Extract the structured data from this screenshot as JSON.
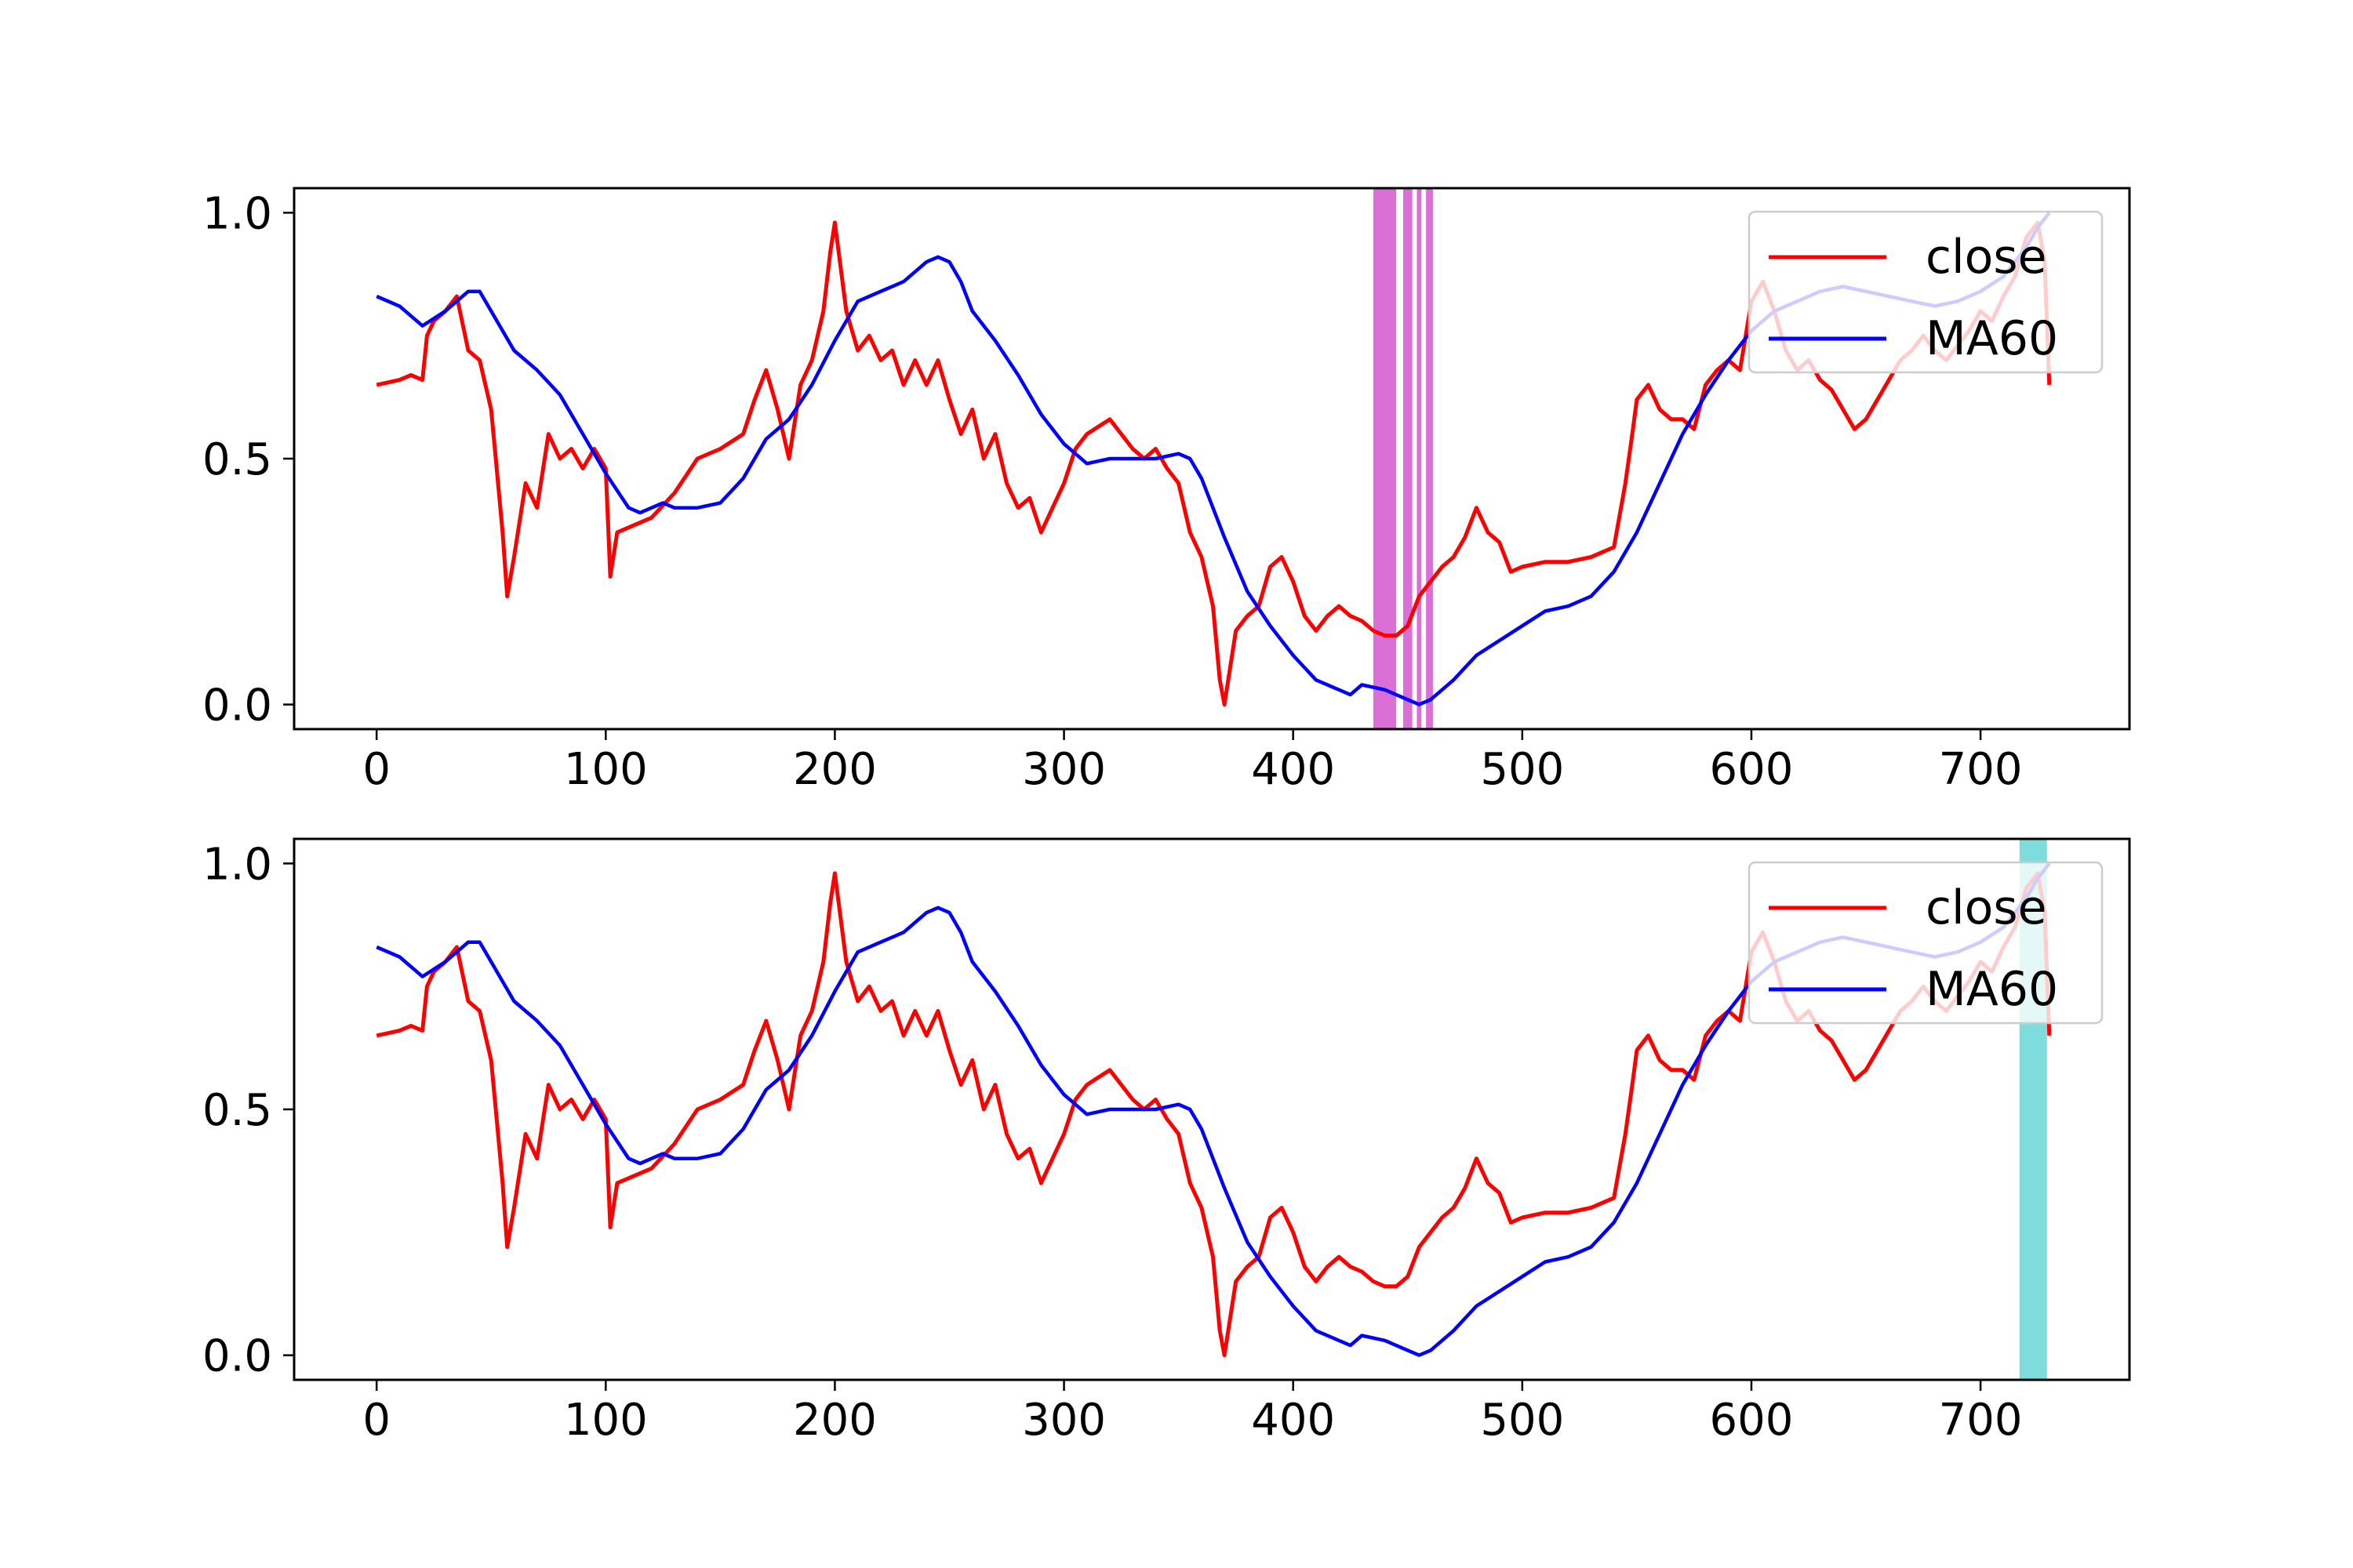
{
  "chart_data": [
    {
      "type": "line",
      "title": "",
      "xlabel": "",
      "ylabel": "",
      "xlim": [
        -36,
        765
      ],
      "ylim": [
        -0.05,
        1.05
      ],
      "xticks": [
        "0",
        "100",
        "200",
        "300",
        "400",
        "500",
        "600",
        "700"
      ],
      "yticks": [
        "0.0",
        "0.5",
        "1.0"
      ],
      "grid": false,
      "legend_placement": "upper right",
      "series": [
        {
          "name": "close",
          "color": "#ff0000",
          "x": [
            0,
            10,
            15,
            20,
            22,
            25,
            30,
            35,
            40,
            45,
            50,
            52,
            55,
            57,
            60,
            65,
            70,
            75,
            80,
            85,
            90,
            95,
            100,
            102,
            105,
            110,
            120,
            130,
            140,
            150,
            160,
            165,
            170,
            175,
            180,
            185,
            190,
            195,
            198,
            200,
            205,
            210,
            215,
            220,
            225,
            230,
            235,
            240,
            245,
            250,
            255,
            260,
            265,
            270,
            275,
            280,
            285,
            290,
            295,
            300,
            305,
            310,
            320,
            325,
            330,
            335,
            340,
            345,
            350,
            355,
            360,
            365,
            368,
            370,
            375,
            380,
            385,
            390,
            395,
            400,
            405,
            410,
            415,
            420,
            425,
            430,
            435,
            440,
            445,
            450,
            455,
            460,
            465,
            470,
            475,
            480,
            485,
            490,
            495,
            500,
            510,
            520,
            530,
            540,
            545,
            548,
            550,
            555,
            560,
            565,
            570,
            575,
            580,
            585,
            590,
            595,
            600,
            605,
            610,
            615,
            620,
            625,
            630,
            635,
            640,
            645,
            650,
            655,
            660,
            665,
            670,
            675,
            680,
            685,
            690,
            695,
            700,
            705,
            710,
            715,
            720,
            725,
            728,
            730
          ],
          "y": [
            0.65,
            0.66,
            0.67,
            0.66,
            0.75,
            0.78,
            0.8,
            0.83,
            0.72,
            0.7,
            0.6,
            0.5,
            0.35,
            0.22,
            0.3,
            0.45,
            0.4,
            0.55,
            0.5,
            0.52,
            0.48,
            0.52,
            0.48,
            0.26,
            0.35,
            0.36,
            0.38,
            0.43,
            0.5,
            0.52,
            0.55,
            0.62,
            0.68,
            0.6,
            0.5,
            0.65,
            0.7,
            0.8,
            0.92,
            0.98,
            0.8,
            0.72,
            0.75,
            0.7,
            0.72,
            0.65,
            0.7,
            0.65,
            0.7,
            0.62,
            0.55,
            0.6,
            0.5,
            0.55,
            0.45,
            0.4,
            0.42,
            0.35,
            0.4,
            0.45,
            0.52,
            0.55,
            0.58,
            0.55,
            0.52,
            0.5,
            0.52,
            0.48,
            0.45,
            0.35,
            0.3,
            0.2,
            0.05,
            0.0,
            0.15,
            0.18,
            0.2,
            0.28,
            0.3,
            0.25,
            0.18,
            0.15,
            0.18,
            0.2,
            0.18,
            0.17,
            0.15,
            0.14,
            0.14,
            0.16,
            0.22,
            0.25,
            0.28,
            0.3,
            0.34,
            0.4,
            0.35,
            0.33,
            0.27,
            0.28,
            0.29,
            0.29,
            0.3,
            0.32,
            0.45,
            0.55,
            0.62,
            0.65,
            0.6,
            0.58,
            0.58,
            0.56,
            0.65,
            0.68,
            0.7,
            0.68,
            0.82,
            0.86,
            0.8,
            0.72,
            0.68,
            0.7,
            0.66,
            0.64,
            0.6,
            0.56,
            0.58,
            0.62,
            0.66,
            0.7,
            0.72,
            0.75,
            0.72,
            0.7,
            0.73,
            0.76,
            0.8,
            0.78,
            0.83,
            0.87,
            0.95,
            0.98,
            0.9,
            0.65
          ]
        },
        {
          "name": "MA60",
          "color": "#0000ff",
          "x": [
            0,
            10,
            20,
            30,
            40,
            45,
            50,
            60,
            70,
            80,
            90,
            100,
            110,
            115,
            120,
            125,
            130,
            135,
            140,
            150,
            160,
            170,
            180,
            190,
            200,
            210,
            220,
            230,
            240,
            245,
            250,
            255,
            260,
            270,
            280,
            290,
            300,
            310,
            320,
            330,
            340,
            350,
            355,
            360,
            370,
            380,
            390,
            400,
            410,
            420,
            425,
            430,
            440,
            450,
            455,
            460,
            470,
            480,
            490,
            500,
            510,
            520,
            530,
            540,
            550,
            560,
            570,
            580,
            590,
            600,
            610,
            620,
            630,
            640,
            650,
            660,
            670,
            680,
            690,
            700,
            710,
            720,
            725,
            730
          ],
          "y": [
            0.83,
            0.81,
            0.77,
            0.8,
            0.84,
            0.84,
            0.8,
            0.72,
            0.68,
            0.63,
            0.55,
            0.47,
            0.4,
            0.39,
            0.4,
            0.41,
            0.4,
            0.4,
            0.4,
            0.41,
            0.46,
            0.54,
            0.58,
            0.65,
            0.74,
            0.82,
            0.84,
            0.86,
            0.9,
            0.91,
            0.9,
            0.86,
            0.8,
            0.74,
            0.67,
            0.59,
            0.53,
            0.49,
            0.5,
            0.5,
            0.5,
            0.51,
            0.5,
            0.46,
            0.34,
            0.23,
            0.16,
            0.1,
            0.05,
            0.03,
            0.02,
            0.04,
            0.03,
            0.01,
            0.0,
            0.01,
            0.05,
            0.1,
            0.13,
            0.16,
            0.19,
            0.2,
            0.22,
            0.27,
            0.35,
            0.45,
            0.55,
            0.63,
            0.7,
            0.76,
            0.8,
            0.82,
            0.84,
            0.85,
            0.84,
            0.83,
            0.82,
            0.81,
            0.82,
            0.84,
            0.87,
            0.93,
            0.97,
            1.0
          ]
        }
      ],
      "highlights": [
        {
          "from": 435,
          "to": 445,
          "color": "#da70d6"
        },
        {
          "from": 448,
          "to": 452,
          "color": "#da70d6"
        },
        {
          "from": 454,
          "to": 456,
          "color": "#da70d6"
        },
        {
          "from": 458,
          "to": 461,
          "color": "#da70d6"
        }
      ]
    },
    {
      "type": "line",
      "title": "",
      "xlabel": "",
      "ylabel": "",
      "xlim": [
        -36,
        765
      ],
      "ylim": [
        -0.05,
        1.05
      ],
      "xticks": [
        "0",
        "100",
        "200",
        "300",
        "400",
        "500",
        "600",
        "700"
      ],
      "yticks": [
        "0.0",
        "0.5",
        "1.0"
      ],
      "grid": false,
      "legend_placement": "upper right",
      "series": [
        {
          "name": "close",
          "color": "#ff0000",
          "x": [
            0,
            10,
            15,
            20,
            22,
            25,
            30,
            35,
            40,
            45,
            50,
            52,
            55,
            57,
            60,
            65,
            70,
            75,
            80,
            85,
            90,
            95,
            100,
            102,
            105,
            110,
            120,
            130,
            140,
            150,
            160,
            165,
            170,
            175,
            180,
            185,
            190,
            195,
            198,
            200,
            205,
            210,
            215,
            220,
            225,
            230,
            235,
            240,
            245,
            250,
            255,
            260,
            265,
            270,
            275,
            280,
            285,
            290,
            295,
            300,
            305,
            310,
            320,
            325,
            330,
            335,
            340,
            345,
            350,
            355,
            360,
            365,
            368,
            370,
            375,
            380,
            385,
            390,
            395,
            400,
            405,
            410,
            415,
            420,
            425,
            430,
            435,
            440,
            445,
            450,
            455,
            460,
            465,
            470,
            475,
            480,
            485,
            490,
            495,
            500,
            510,
            520,
            530,
            540,
            545,
            548,
            550,
            555,
            560,
            565,
            570,
            575,
            580,
            585,
            590,
            595,
            600,
            605,
            610,
            615,
            620,
            625,
            630,
            635,
            640,
            645,
            650,
            655,
            660,
            665,
            670,
            675,
            680,
            685,
            690,
            695,
            700,
            705,
            710,
            715,
            720,
            725,
            728,
            730
          ],
          "y": [
            0.65,
            0.66,
            0.67,
            0.66,
            0.75,
            0.78,
            0.8,
            0.83,
            0.72,
            0.7,
            0.6,
            0.5,
            0.35,
            0.22,
            0.3,
            0.45,
            0.4,
            0.55,
            0.5,
            0.52,
            0.48,
            0.52,
            0.48,
            0.26,
            0.35,
            0.36,
            0.38,
            0.43,
            0.5,
            0.52,
            0.55,
            0.62,
            0.68,
            0.6,
            0.5,
            0.65,
            0.7,
            0.8,
            0.92,
            0.98,
            0.8,
            0.72,
            0.75,
            0.7,
            0.72,
            0.65,
            0.7,
            0.65,
            0.7,
            0.62,
            0.55,
            0.6,
            0.5,
            0.55,
            0.45,
            0.4,
            0.42,
            0.35,
            0.4,
            0.45,
            0.52,
            0.55,
            0.58,
            0.55,
            0.52,
            0.5,
            0.52,
            0.48,
            0.45,
            0.35,
            0.3,
            0.2,
            0.05,
            0.0,
            0.15,
            0.18,
            0.2,
            0.28,
            0.3,
            0.25,
            0.18,
            0.15,
            0.18,
            0.2,
            0.18,
            0.17,
            0.15,
            0.14,
            0.14,
            0.16,
            0.22,
            0.25,
            0.28,
            0.3,
            0.34,
            0.4,
            0.35,
            0.33,
            0.27,
            0.28,
            0.29,
            0.29,
            0.3,
            0.32,
            0.45,
            0.55,
            0.62,
            0.65,
            0.6,
            0.58,
            0.58,
            0.56,
            0.65,
            0.68,
            0.7,
            0.68,
            0.82,
            0.86,
            0.8,
            0.72,
            0.68,
            0.7,
            0.66,
            0.64,
            0.6,
            0.56,
            0.58,
            0.62,
            0.66,
            0.7,
            0.72,
            0.75,
            0.72,
            0.7,
            0.73,
            0.76,
            0.8,
            0.78,
            0.83,
            0.87,
            0.95,
            0.98,
            0.9,
            0.65
          ]
        },
        {
          "name": "MA60",
          "color": "#0000ff",
          "x": [
            0,
            10,
            20,
            30,
            40,
            45,
            50,
            60,
            70,
            80,
            90,
            100,
            110,
            115,
            120,
            125,
            130,
            135,
            140,
            150,
            160,
            170,
            180,
            190,
            200,
            210,
            220,
            230,
            240,
            245,
            250,
            255,
            260,
            270,
            280,
            290,
            300,
            310,
            320,
            330,
            340,
            350,
            355,
            360,
            370,
            380,
            390,
            400,
            410,
            420,
            425,
            430,
            440,
            450,
            455,
            460,
            470,
            480,
            490,
            500,
            510,
            520,
            530,
            540,
            550,
            560,
            570,
            580,
            590,
            600,
            610,
            620,
            630,
            640,
            650,
            660,
            670,
            680,
            690,
            700,
            710,
            720,
            725,
            730
          ],
          "y": [
            0.83,
            0.81,
            0.77,
            0.8,
            0.84,
            0.84,
            0.8,
            0.72,
            0.68,
            0.63,
            0.55,
            0.47,
            0.4,
            0.39,
            0.4,
            0.41,
            0.4,
            0.4,
            0.4,
            0.41,
            0.46,
            0.54,
            0.58,
            0.65,
            0.74,
            0.82,
            0.84,
            0.86,
            0.9,
            0.91,
            0.9,
            0.86,
            0.8,
            0.74,
            0.67,
            0.59,
            0.53,
            0.49,
            0.5,
            0.5,
            0.5,
            0.51,
            0.5,
            0.46,
            0.34,
            0.23,
            0.16,
            0.1,
            0.05,
            0.03,
            0.02,
            0.04,
            0.03,
            0.01,
            0.0,
            0.01,
            0.05,
            0.1,
            0.13,
            0.16,
            0.19,
            0.2,
            0.22,
            0.27,
            0.35,
            0.45,
            0.55,
            0.63,
            0.7,
            0.76,
            0.8,
            0.82,
            0.84,
            0.85,
            0.84,
            0.83,
            0.82,
            0.81,
            0.82,
            0.84,
            0.87,
            0.93,
            0.97,
            1.0
          ]
        }
      ],
      "highlights": [
        {
          "from": 717,
          "to": 729,
          "color": "#7fdcdc"
        }
      ]
    }
  ]
}
